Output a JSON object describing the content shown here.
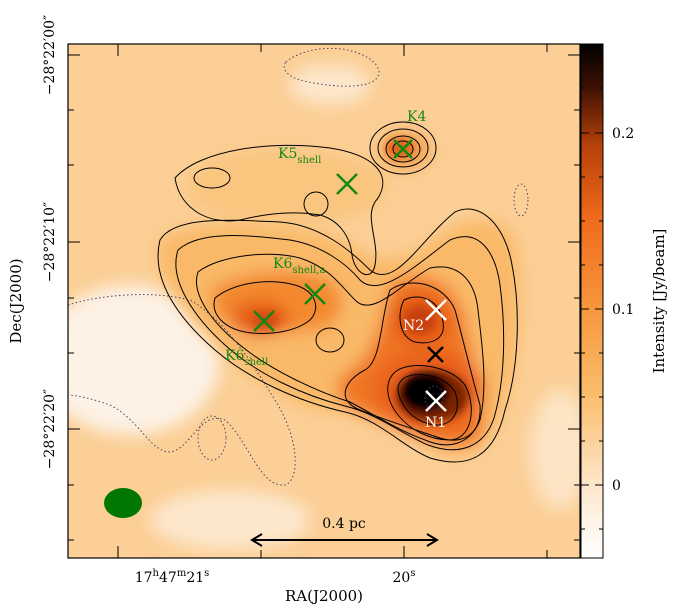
{
  "axes": {
    "x_title": "RA(J2000)",
    "y_title": "Dec(J2000)",
    "x_ticks": [
      {
        "h": "17",
        "m": "47",
        "s": "21"
      },
      {
        "s": "20"
      }
    ],
    "y_ticks": [
      "−28°22′00″",
      "−28°22′10″",
      "−28°22′20″"
    ]
  },
  "colorbar": {
    "label": "Intensity [Jy/beam]",
    "ticks": [
      "0.2",
      "0.1",
      "0"
    ],
    "colors": [
      "#ffffff",
      "#fde2c0",
      "#fbbe6e",
      "#f6953a",
      "#ef6a1c",
      "#c94a0c",
      "#7a2a06",
      "#1a0600",
      "#000000"
    ]
  },
  "scalebar": {
    "label": "0.4 pc"
  },
  "sources": {
    "k4": {
      "name": "K4",
      "sub": ""
    },
    "k5": {
      "name": "K5",
      "sub": "shell"
    },
    "k6a": {
      "name": "K6",
      "sub": "shell,a"
    },
    "k6": {
      "name": "K6",
      "sub": "shell"
    },
    "n2": {
      "name": "N2"
    },
    "n1": {
      "name": "N1"
    }
  },
  "colors": {
    "green_marker": "#118811",
    "beam": "#007700",
    "white_marker": "#ffffff",
    "black_marker": "#000000"
  }
}
